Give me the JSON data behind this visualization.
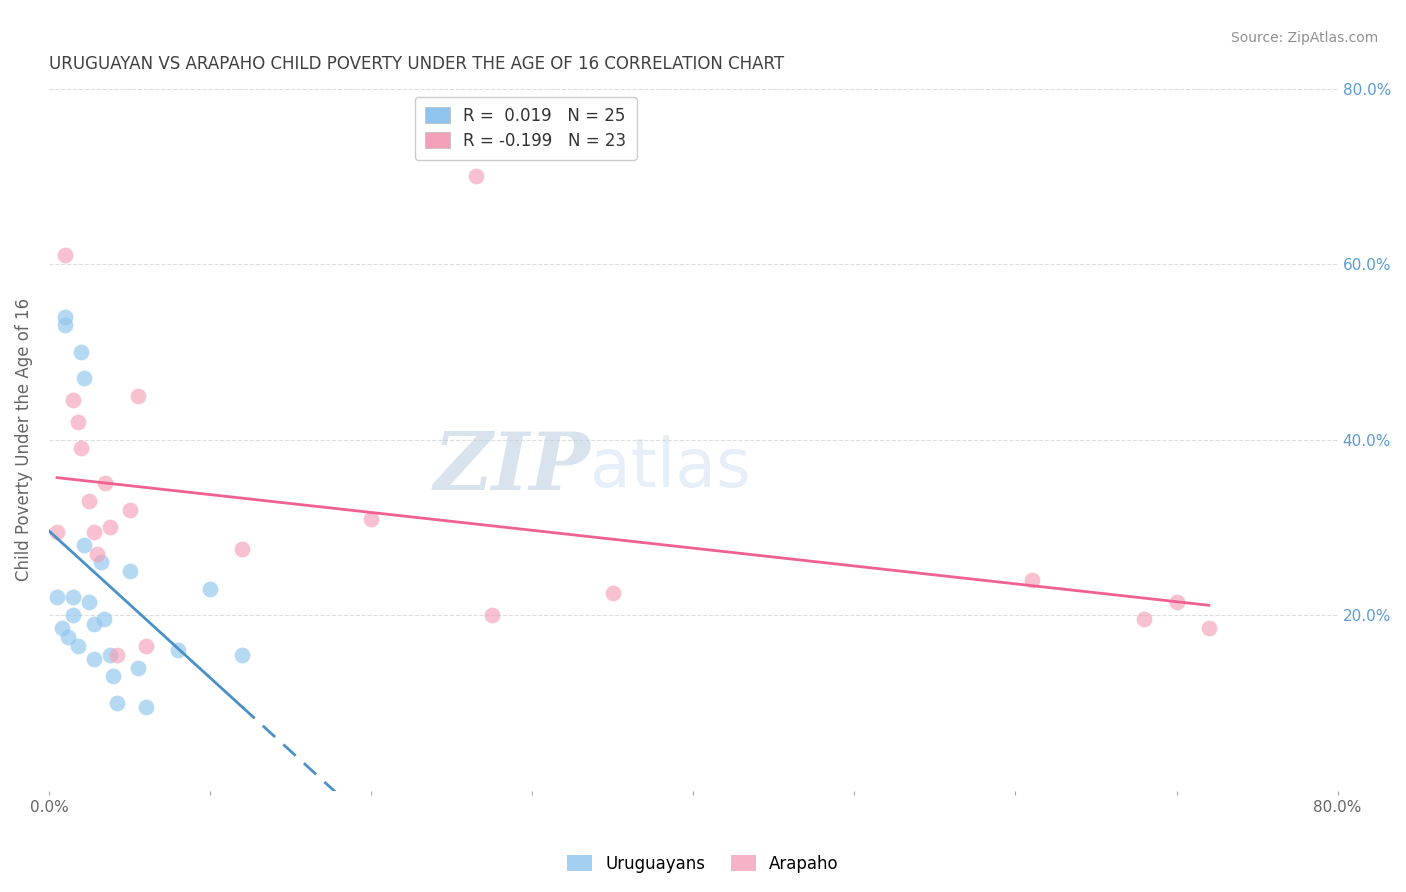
{
  "title": "URUGUAYAN VS ARAPAHO CHILD POVERTY UNDER THE AGE OF 16 CORRELATION CHART",
  "source": "Source: ZipAtlas.com",
  "ylabel": "Child Poverty Under the Age of 16",
  "xlim": [
    0.0,
    0.8
  ],
  "ylim": [
    0.0,
    0.8
  ],
  "x_ticks": [
    0.0,
    0.1,
    0.2,
    0.3,
    0.4,
    0.5,
    0.6,
    0.7,
    0.8
  ],
  "y_ticks": [
    0.0,
    0.2,
    0.4,
    0.6,
    0.8
  ],
  "uruguayan_color": "#8EC4EE",
  "arapaho_color": "#F4A0B8",
  "uruguayan_line_color": "#4A90C8",
  "arapaho_line_color": "#F06090",
  "legend_R_uruguayan": "R =  0.019",
  "legend_N_uruguayan": "N = 25",
  "legend_R_arapaho": "R = -0.199",
  "legend_N_arapaho": "N = 23",
  "uruguayan_x": [
    0.005,
    0.008,
    0.01,
    0.01,
    0.012,
    0.015,
    0.015,
    0.018,
    0.02,
    0.022,
    0.022,
    0.025,
    0.028,
    0.028,
    0.032,
    0.034,
    0.038,
    0.04,
    0.042,
    0.05,
    0.055,
    0.06,
    0.08,
    0.1,
    0.12
  ],
  "uruguayan_y": [
    0.22,
    0.185,
    0.54,
    0.53,
    0.175,
    0.22,
    0.2,
    0.165,
    0.5,
    0.47,
    0.28,
    0.215,
    0.19,
    0.15,
    0.26,
    0.195,
    0.155,
    0.13,
    0.1,
    0.25,
    0.14,
    0.095,
    0.16,
    0.23,
    0.155
  ],
  "arapaho_x": [
    0.005,
    0.01,
    0.015,
    0.018,
    0.02,
    0.025,
    0.028,
    0.03,
    0.035,
    0.038,
    0.042,
    0.05,
    0.055,
    0.06,
    0.12,
    0.2,
    0.265,
    0.275,
    0.35,
    0.61,
    0.68,
    0.7,
    0.72
  ],
  "arapaho_y": [
    0.295,
    0.61,
    0.445,
    0.42,
    0.39,
    0.33,
    0.295,
    0.27,
    0.35,
    0.3,
    0.155,
    0.32,
    0.45,
    0.165,
    0.275,
    0.31,
    0.7,
    0.2,
    0.225,
    0.24,
    0.195,
    0.215,
    0.185
  ],
  "watermark_zip": "ZIP",
  "watermark_atlas": "atlas",
  "background_color": "#FFFFFF",
  "grid_color": "#DDDDDD",
  "title_color": "#404040",
  "source_color": "#909090",
  "right_axis_color": "#5B9BD5",
  "marker_size": 130,
  "marker_alpha": 0.65
}
